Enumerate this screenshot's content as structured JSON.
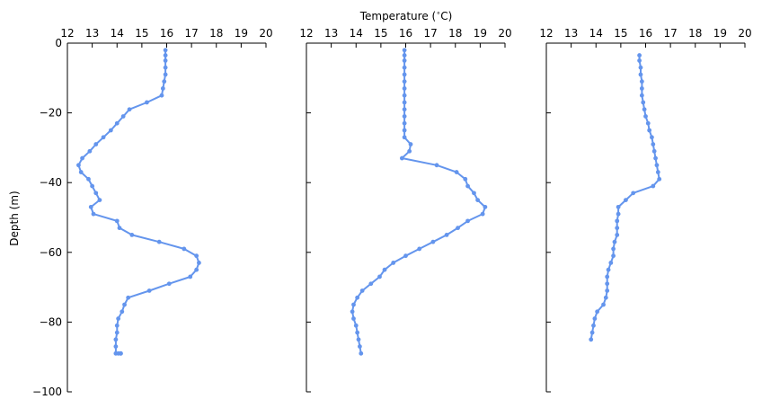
{
  "chart_data": {
    "type": "line",
    "title": "",
    "xlabel": "Temperature ($^\\circ$C)",
    "xlabel_text": "Temperature (",
    "xlabel_degree": "∘",
    "xlabel_unit": "C)",
    "ylabel": "Depth (m)",
    "xlim": [
      12,
      20
    ],
    "ylim": [
      -100,
      0
    ],
    "xticks": [
      12,
      13,
      14,
      15,
      16,
      17,
      18,
      19,
      20
    ],
    "yticks": [
      0,
      -20,
      -40,
      -60,
      -80,
      -100
    ],
    "ytick_labels": [
      "0",
      "−20",
      "−40",
      "−60",
      "−80",
      "−100"
    ],
    "xaxis_position": "top",
    "grid": false,
    "line_color": "#6495ED",
    "panels": [
      {
        "x": [
          15.95,
          15.95,
          15.95,
          15.95,
          15.95,
          15.9,
          15.85,
          15.8,
          15.2,
          14.5,
          14.25,
          14.0,
          13.75,
          13.45,
          13.15,
          12.9,
          12.6,
          12.45,
          12.55,
          12.85,
          13.0,
          13.15,
          13.3,
          12.95,
          13.05,
          14.0,
          14.1,
          14.6,
          15.7,
          16.7,
          17.2,
          17.3,
          17.2,
          16.95,
          16.1,
          15.3,
          14.45,
          14.3,
          14.2,
          14.05,
          14.0,
          14.0,
          13.95,
          13.95,
          13.95,
          14.05,
          14.15,
          14.15
        ],
        "y": [
          -2,
          -3.5,
          -5,
          -7,
          -9,
          -11,
          -13,
          -15,
          -17,
          -19,
          -21,
          -23,
          -25,
          -27,
          -29,
          -31,
          -33,
          -35,
          -37,
          -39,
          -41,
          -43,
          -45,
          -47,
          -49,
          -51,
          -53,
          -55,
          -57,
          -59,
          -61,
          -63,
          -65,
          -67,
          -69,
          -71,
          -73,
          -75,
          -77,
          -79,
          -81,
          -83,
          -85,
          -87,
          -89,
          -89,
          -89,
          -89
        ]
      },
      {
        "x": [
          15.95,
          15.95,
          15.95,
          15.95,
          15.95,
          15.95,
          15.95,
          15.95,
          15.95,
          15.95,
          15.95,
          15.95,
          15.95,
          15.95,
          16.2,
          16.15,
          15.85,
          17.25,
          18.05,
          18.4,
          18.5,
          18.75,
          18.9,
          19.2,
          19.1,
          18.5,
          18.1,
          17.65,
          17.1,
          16.55,
          16.0,
          15.5,
          15.15,
          14.95,
          14.6,
          14.25,
          14.05,
          13.9,
          13.85,
          13.9,
          14.0,
          14.05,
          14.1,
          14.15,
          14.2
        ],
        "y": [
          -2,
          -3.5,
          -5,
          -7,
          -9,
          -11,
          -13,
          -15,
          -17,
          -19,
          -21,
          -23,
          -25,
          -27,
          -29,
          -31,
          -33,
          -35,
          -37,
          -39,
          -41,
          -43,
          -45,
          -47,
          -49,
          -51,
          -53,
          -55,
          -57,
          -59,
          -61,
          -63,
          -65,
          -67,
          -69,
          -71,
          -73,
          -75,
          -77,
          -79,
          -81,
          -83,
          -85,
          -87,
          -89
        ]
      },
      {
        "x": [
          15.75,
          15.75,
          15.8,
          15.8,
          15.85,
          15.85,
          15.85,
          15.9,
          15.95,
          16.0,
          16.1,
          16.15,
          16.25,
          16.3,
          16.35,
          16.4,
          16.45,
          16.5,
          16.55,
          16.3,
          15.5,
          15.2,
          14.9,
          14.9,
          14.85,
          14.85,
          14.85,
          14.75,
          14.7,
          14.7,
          14.6,
          14.5,
          14.45,
          14.45,
          14.45,
          14.4,
          14.3,
          14.05,
          13.95,
          13.9,
          13.85,
          13.8
        ],
        "y": [
          -3.5,
          -5,
          -7,
          -9,
          -11,
          -13,
          -15,
          -17,
          -19,
          -21,
          -23,
          -25,
          -27,
          -29,
          -31,
          -33,
          -35,
          -37,
          -39,
          -41,
          -43,
          -45,
          -47,
          -49,
          -51,
          -53,
          -55,
          -57,
          -59,
          -61,
          -63,
          -65,
          -67,
          -69,
          -71,
          -73,
          -75,
          -77,
          -79,
          -81,
          -83,
          -85
        ]
      }
    ]
  }
}
